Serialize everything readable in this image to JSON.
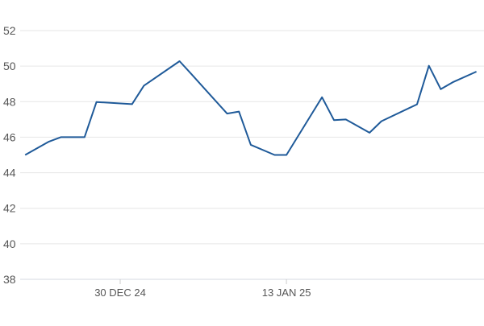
{
  "chart_data": {
    "type": "line",
    "title": "",
    "xlabel": "",
    "ylabel": "",
    "ylim": [
      38,
      52
    ],
    "yticks": [
      38,
      40,
      42,
      44,
      46,
      48,
      50,
      52
    ],
    "xticks": [
      {
        "date": "2024-12-30",
        "label": "30 DEC 24"
      },
      {
        "date": "2025-01-13",
        "label": "13 JAN 25"
      }
    ],
    "grid": "horizontal",
    "line_color": "#1f5a99",
    "series": [
      {
        "x": [
          "2024-12-22",
          "2024-12-24",
          "2024-12-25",
          "2024-12-27",
          "2024-12-28",
          "2024-12-31",
          "2025-01-01",
          "2025-01-04",
          "2025-01-05",
          "2025-01-08",
          "2025-01-09",
          "2025-01-10",
          "2025-01-12",
          "2025-01-13",
          "2025-01-16",
          "2025-01-17",
          "2025-01-18",
          "2025-01-20",
          "2025-01-21",
          "2025-01-24",
          "2025-01-25",
          "2025-01-26",
          "2025-01-27",
          "2025-01-29"
        ],
        "values": [
          45.0,
          45.75,
          46.0,
          46.0,
          47.98,
          47.86,
          48.9,
          50.28,
          49.55,
          47.33,
          47.44,
          45.57,
          45.0,
          45.0,
          48.25,
          46.96,
          47.0,
          46.25,
          46.9,
          47.85,
          50.02,
          48.7,
          49.09,
          49.69
        ]
      }
    ]
  }
}
